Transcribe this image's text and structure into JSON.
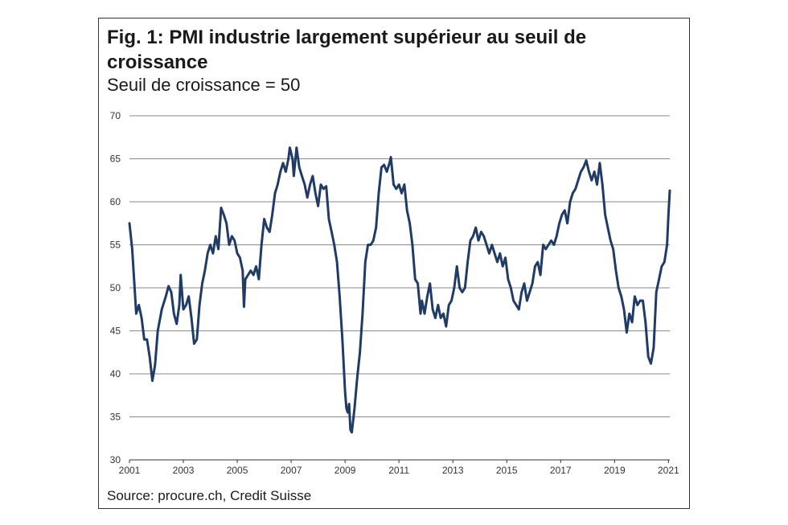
{
  "title": "Fig. 1: PMI industrie largement supérieur au seuil de croissance",
  "subtitle": "Seuil de croissance = 50",
  "source": "Source: procure.ch, Credit Suisse",
  "colors": {
    "line": "#1f3b66",
    "grid": "#8a8a8a",
    "text": "#1a1a1a"
  },
  "chart_data": {
    "type": "line",
    "title": "Fig. 1: PMI industrie largement supérieur au seuil de croissance",
    "subtitle": "Seuil de croissance = 50",
    "xlabel": "",
    "ylabel": "",
    "xlim": [
      2001,
      2021.05
    ],
    "ylim": [
      30,
      70
    ],
    "y_ticks": [
      30,
      35,
      40,
      45,
      50,
      55,
      60,
      65,
      70
    ],
    "x_ticks": [
      2001,
      2003,
      2005,
      2007,
      2009,
      2011,
      2013,
      2015,
      2017,
      2019,
      2021
    ],
    "grid": "horizontal",
    "legend": "none",
    "series": [
      {
        "color": "#1f3b66",
        "points": [
          [
            2001.0,
            57.5
          ],
          [
            2001.1,
            54.5
          ],
          [
            2001.25,
            47
          ],
          [
            2001.35,
            48
          ],
          [
            2001.45,
            46.5
          ],
          [
            2001.55,
            44
          ],
          [
            2001.65,
            44
          ],
          [
            2001.75,
            42
          ],
          [
            2001.85,
            39.2
          ],
          [
            2001.95,
            41
          ],
          [
            2002.05,
            45
          ],
          [
            2002.2,
            47.5
          ],
          [
            2002.35,
            49
          ],
          [
            2002.45,
            50.2
          ],
          [
            2002.55,
            49.5
          ],
          [
            2002.65,
            47
          ],
          [
            2002.75,
            45.8
          ],
          [
            2002.85,
            48
          ],
          [
            2002.9,
            51.5
          ],
          [
            2003.0,
            47.5
          ],
          [
            2003.1,
            48
          ],
          [
            2003.2,
            49
          ],
          [
            2003.3,
            46.5
          ],
          [
            2003.4,
            43.5
          ],
          [
            2003.5,
            44
          ],
          [
            2003.6,
            48
          ],
          [
            2003.7,
            50.5
          ],
          [
            2003.8,
            52
          ],
          [
            2003.9,
            54
          ],
          [
            2004.0,
            55
          ],
          [
            2004.1,
            54
          ],
          [
            2004.2,
            56
          ],
          [
            2004.3,
            54.5
          ],
          [
            2004.4,
            59.3
          ],
          [
            2004.5,
            58.5
          ],
          [
            2004.6,
            57.5
          ],
          [
            2004.7,
            55
          ],
          [
            2004.8,
            56
          ],
          [
            2004.9,
            55.5
          ],
          [
            2005.0,
            54
          ],
          [
            2005.1,
            53.5
          ],
          [
            2005.2,
            52
          ],
          [
            2005.25,
            47.8
          ],
          [
            2005.3,
            51
          ],
          [
            2005.4,
            51.5
          ],
          [
            2005.5,
            52
          ],
          [
            2005.6,
            51.5
          ],
          [
            2005.7,
            52.5
          ],
          [
            2005.8,
            51
          ],
          [
            2005.9,
            55
          ],
          [
            2006.0,
            58
          ],
          [
            2006.1,
            57
          ],
          [
            2006.2,
            56.5
          ],
          [
            2006.3,
            58.5
          ],
          [
            2006.4,
            61
          ],
          [
            2006.5,
            62
          ],
          [
            2006.6,
            63.5
          ],
          [
            2006.7,
            64.5
          ],
          [
            2006.8,
            63.5
          ],
          [
            2006.9,
            65
          ],
          [
            2006.95,
            66.3
          ],
          [
            2007.05,
            65
          ],
          [
            2007.1,
            63
          ],
          [
            2007.2,
            66.3
          ],
          [
            2007.3,
            64
          ],
          [
            2007.4,
            63
          ],
          [
            2007.5,
            62
          ],
          [
            2007.6,
            60.5
          ],
          [
            2007.7,
            62
          ],
          [
            2007.8,
            63
          ],
          [
            2007.9,
            61
          ],
          [
            2008.0,
            59.5
          ],
          [
            2008.1,
            62
          ],
          [
            2008.2,
            61.5
          ],
          [
            2008.3,
            61.8
          ],
          [
            2008.4,
            58
          ],
          [
            2008.5,
            56.5
          ],
          [
            2008.6,
            55
          ],
          [
            2008.7,
            53
          ],
          [
            2008.8,
            49
          ],
          [
            2008.9,
            44
          ],
          [
            2009.0,
            38
          ],
          [
            2009.05,
            36
          ],
          [
            2009.1,
            35.5
          ],
          [
            2009.15,
            36.5
          ],
          [
            2009.2,
            33.5
          ],
          [
            2009.25,
            33.2
          ],
          [
            2009.35,
            36
          ],
          [
            2009.45,
            39.5
          ],
          [
            2009.55,
            42.5
          ],
          [
            2009.65,
            47
          ],
          [
            2009.75,
            53
          ],
          [
            2009.85,
            55
          ],
          [
            2009.95,
            55
          ],
          [
            2010.05,
            55.5
          ],
          [
            2010.15,
            57
          ],
          [
            2010.25,
            61
          ],
          [
            2010.35,
            64
          ],
          [
            2010.45,
            64.3
          ],
          [
            2010.55,
            63.5
          ],
          [
            2010.65,
            64.5
          ],
          [
            2010.7,
            65.2
          ],
          [
            2010.8,
            62
          ],
          [
            2010.9,
            61.5
          ],
          [
            2011.0,
            62
          ],
          [
            2011.1,
            61
          ],
          [
            2011.2,
            62
          ],
          [
            2011.3,
            59
          ],
          [
            2011.4,
            57.5
          ],
          [
            2011.5,
            55
          ],
          [
            2011.6,
            51
          ],
          [
            2011.7,
            50.5
          ],
          [
            2011.8,
            47
          ],
          [
            2011.85,
            48.5
          ],
          [
            2011.95,
            47
          ],
          [
            2012.05,
            49
          ],
          [
            2012.15,
            50.5
          ],
          [
            2012.25,
            47.5
          ],
          [
            2012.35,
            46.5
          ],
          [
            2012.45,
            48
          ],
          [
            2012.55,
            46.5
          ],
          [
            2012.65,
            47
          ],
          [
            2012.75,
            45.5
          ],
          [
            2012.85,
            48
          ],
          [
            2012.95,
            48.5
          ],
          [
            2013.05,
            50
          ],
          [
            2013.15,
            52.5
          ],
          [
            2013.25,
            50
          ],
          [
            2013.35,
            49.5
          ],
          [
            2013.45,
            50
          ],
          [
            2013.55,
            53
          ],
          [
            2013.65,
            55.5
          ],
          [
            2013.75,
            56
          ],
          [
            2013.85,
            57
          ],
          [
            2013.95,
            55.5
          ],
          [
            2014.05,
            56.5
          ],
          [
            2014.15,
            56
          ],
          [
            2014.25,
            55
          ],
          [
            2014.35,
            54
          ],
          [
            2014.45,
            55
          ],
          [
            2014.55,
            54
          ],
          [
            2014.65,
            53
          ],
          [
            2014.75,
            54
          ],
          [
            2014.85,
            52.5
          ],
          [
            2014.95,
            53.5
          ],
          [
            2015.05,
            51
          ],
          [
            2015.15,
            50
          ],
          [
            2015.25,
            48.5
          ],
          [
            2015.35,
            48
          ],
          [
            2015.45,
            47.5
          ],
          [
            2015.55,
            49.5
          ],
          [
            2015.65,
            50.5
          ],
          [
            2015.75,
            48.5
          ],
          [
            2015.85,
            49.5
          ],
          [
            2015.95,
            50.5
          ],
          [
            2016.05,
            52.5
          ],
          [
            2016.15,
            53
          ],
          [
            2016.25,
            51.5
          ],
          [
            2016.35,
            55
          ],
          [
            2016.45,
            54.5
          ],
          [
            2016.55,
            55
          ],
          [
            2016.65,
            55.5
          ],
          [
            2016.75,
            55
          ],
          [
            2016.85,
            56
          ],
          [
            2016.95,
            57.5
          ],
          [
            2017.05,
            58.5
          ],
          [
            2017.15,
            59
          ],
          [
            2017.25,
            57.5
          ],
          [
            2017.35,
            60
          ],
          [
            2017.45,
            61
          ],
          [
            2017.55,
            61.5
          ],
          [
            2017.65,
            62.5
          ],
          [
            2017.75,
            63.5
          ],
          [
            2017.85,
            64
          ],
          [
            2017.95,
            64.8
          ],
          [
            2018.05,
            63.5
          ],
          [
            2018.15,
            62.5
          ],
          [
            2018.25,
            63.5
          ],
          [
            2018.35,
            62
          ],
          [
            2018.45,
            64.5
          ],
          [
            2018.55,
            62
          ],
          [
            2018.65,
            58.5
          ],
          [
            2018.75,
            57
          ],
          [
            2018.85,
            55.5
          ],
          [
            2018.95,
            54.5
          ],
          [
            2019.05,
            52
          ],
          [
            2019.15,
            50
          ],
          [
            2019.25,
            49
          ],
          [
            2019.35,
            47.5
          ],
          [
            2019.45,
            44.8
          ],
          [
            2019.55,
            47
          ],
          [
            2019.65,
            46
          ],
          [
            2019.75,
            49
          ],
          [
            2019.85,
            48
          ],
          [
            2019.95,
            48.5
          ],
          [
            2020.05,
            48.5
          ],
          [
            2020.15,
            46
          ],
          [
            2020.25,
            42
          ],
          [
            2020.35,
            41.2
          ],
          [
            2020.45,
            43
          ],
          [
            2020.55,
            49.5
          ],
          [
            2020.65,
            51
          ],
          [
            2020.75,
            52.5
          ],
          [
            2020.85,
            53
          ],
          [
            2020.95,
            55
          ],
          [
            2021.0,
            58.5
          ],
          [
            2021.05,
            61.3
          ]
        ]
      }
    ]
  }
}
